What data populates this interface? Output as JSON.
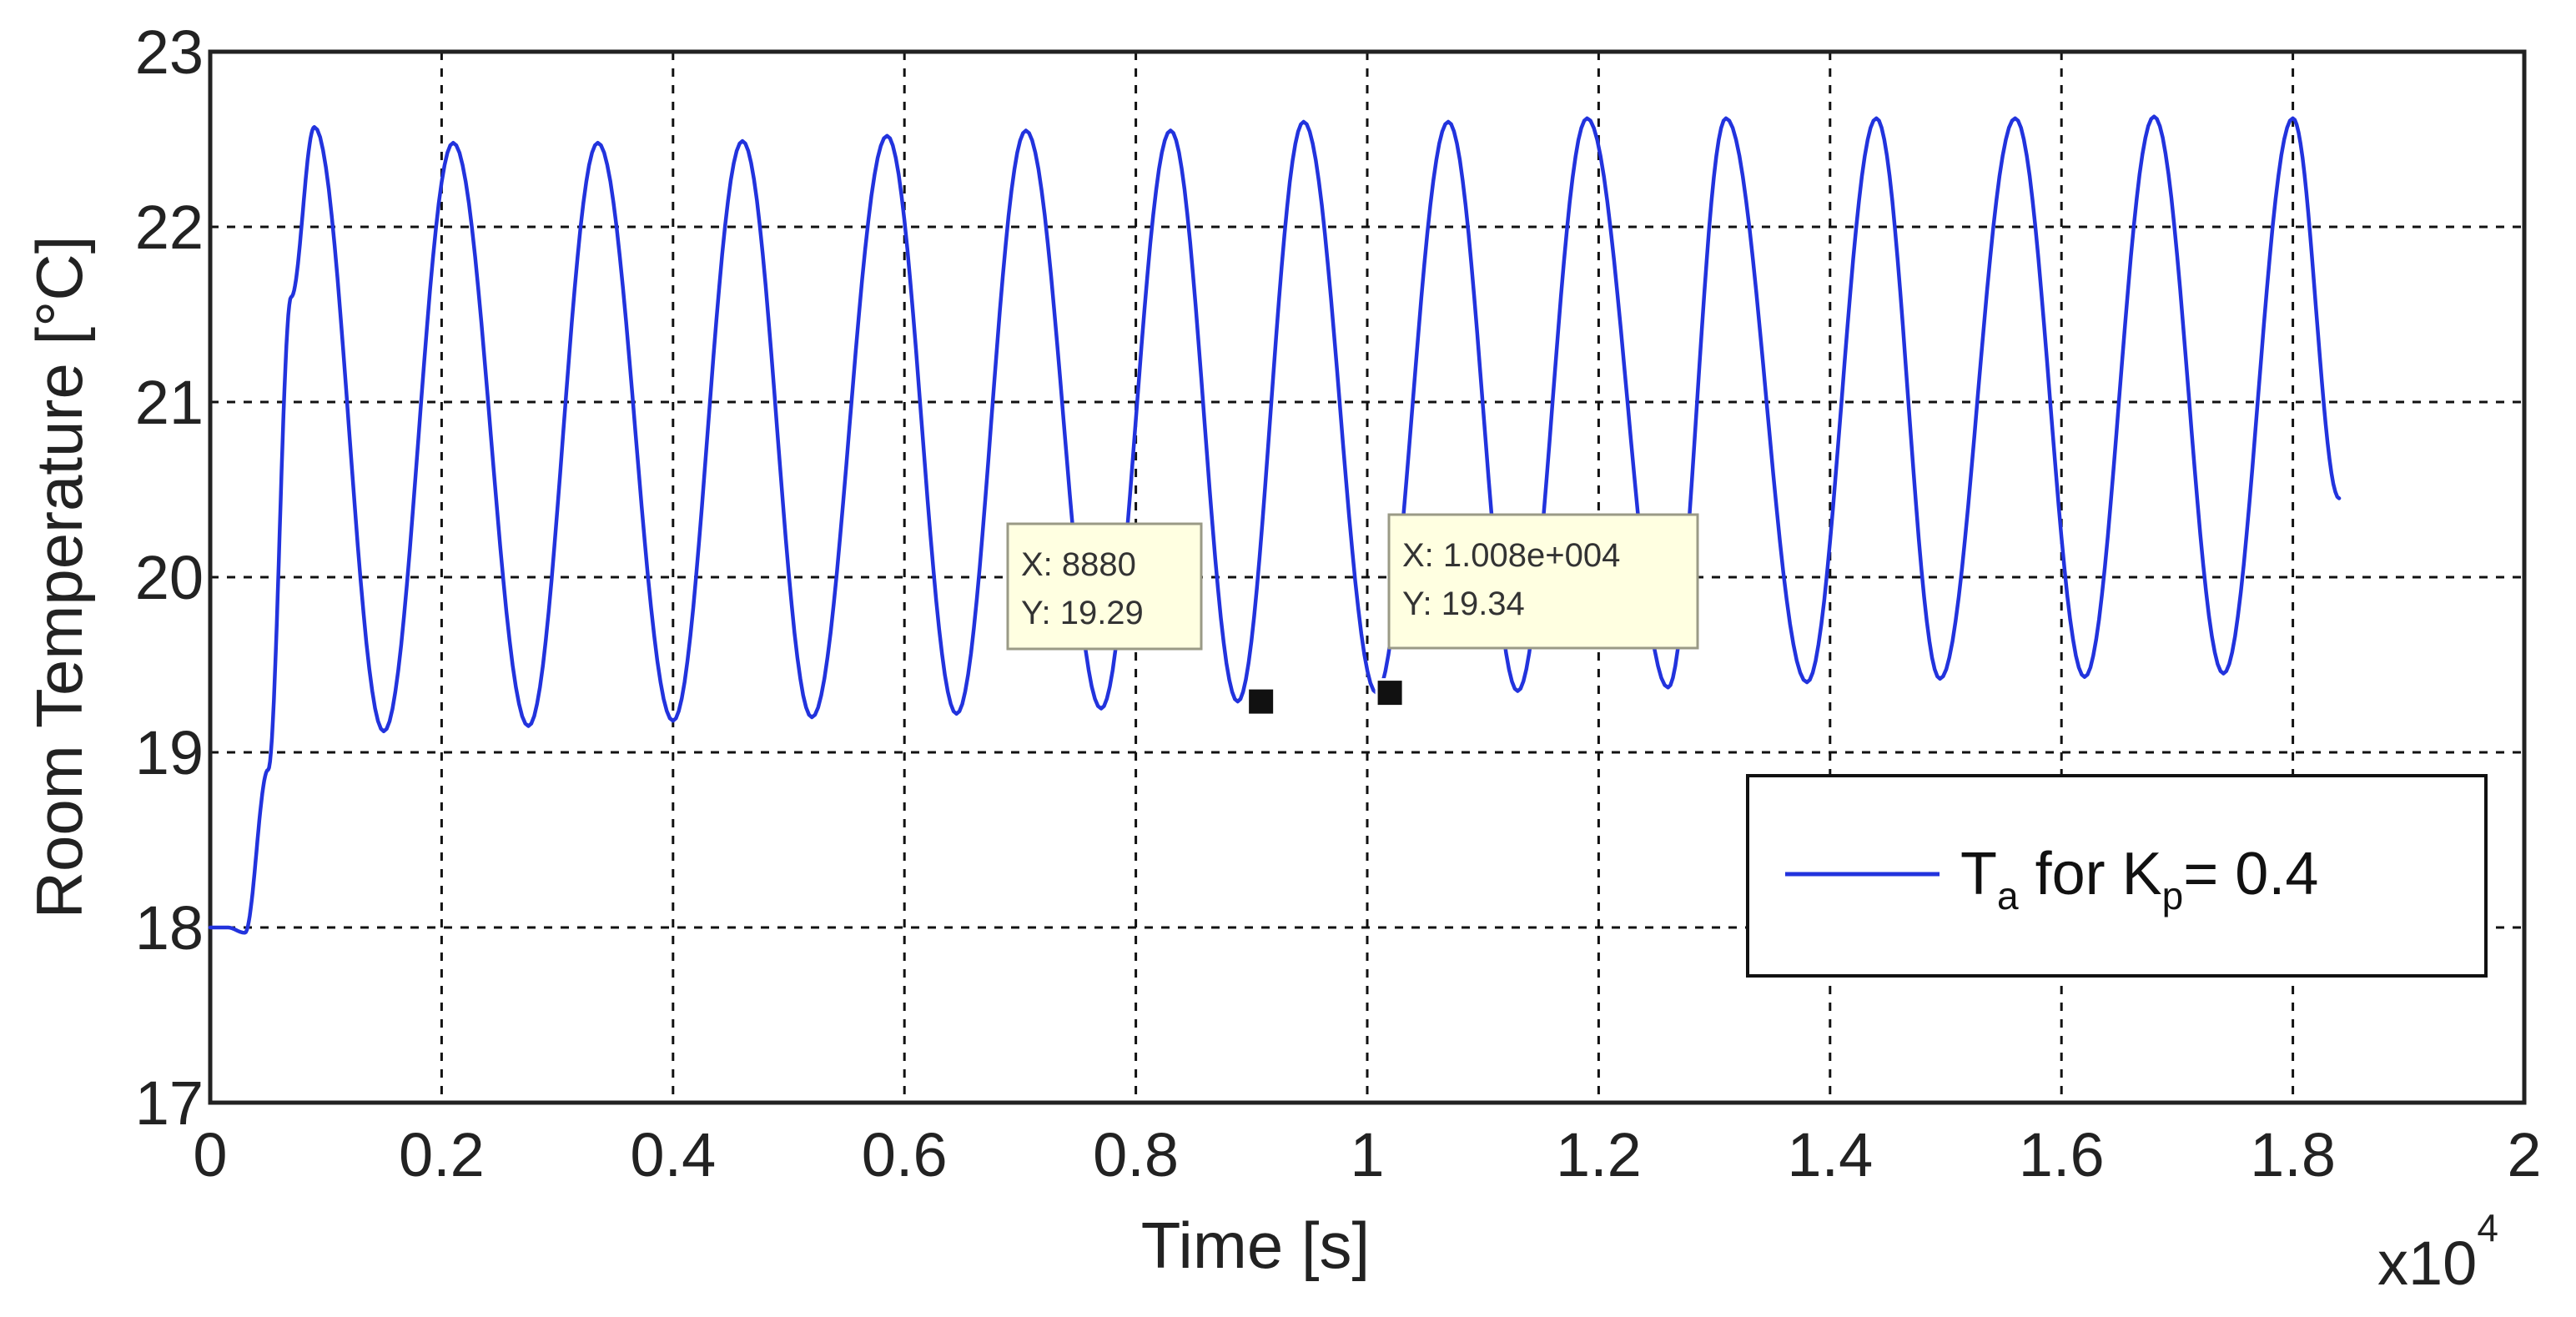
{
  "chart_data": {
    "type": "line",
    "xlabel": "Time [s]",
    "ylabel": "Room Temperature [°C]",
    "x_exponent_label": "x10",
    "x_exponent_power": "4",
    "xlim": [
      0,
      20000
    ],
    "ylim": [
      17,
      23
    ],
    "grid": true,
    "legend_position": "bottom-right",
    "x_tick_labels": [
      "0",
      "0.2",
      "0.4",
      "0.6",
      "0.8",
      "1",
      "1.2",
      "1.4",
      "1.6",
      "1.8",
      "2"
    ],
    "y_tick_labels": [
      "17",
      "18",
      "19",
      "20",
      "21",
      "22",
      "23"
    ],
    "series": [
      {
        "legend_T": "T",
        "legend_a": "a",
        "legend_mid": " for K",
        "legend_p": "p",
        "legend_end": "= 0.4",
        "color": "#2233dd",
        "x": [
          0,
          150,
          300,
          500,
          700,
          900,
          1500,
          2100,
          2750,
          3350,
          4000,
          4600,
          5200,
          5850,
          6450,
          7050,
          7700,
          8300,
          8880,
          9450,
          10080,
          10700,
          11300,
          11900,
          12600,
          13100,
          13800,
          14400,
          14950,
          15600,
          16200,
          16800,
          17400,
          18000,
          18400
        ],
        "y": [
          18.0,
          18.0,
          17.97,
          18.9,
          21.6,
          22.57,
          19.12,
          22.48,
          19.15,
          22.48,
          19.18,
          22.49,
          19.2,
          22.52,
          19.22,
          22.55,
          19.25,
          22.55,
          19.29,
          22.6,
          19.34,
          22.6,
          19.35,
          22.62,
          19.37,
          22.62,
          19.4,
          22.62,
          19.42,
          22.62,
          19.43,
          22.63,
          19.45,
          22.62,
          20.45
        ]
      }
    ],
    "annotations": [
      {
        "x_label": "X: 8880",
        "y_label": "Y: 19.29",
        "x": 8880,
        "y": 19.29
      },
      {
        "x_label": "X: 1.008e+004",
        "y_label": "Y: 19.34",
        "x": 10080,
        "y": 19.34
      }
    ],
    "colors": {
      "line": "#2233dd",
      "grid": "#111111",
      "tooltip_bg": "#ffffe1"
    }
  }
}
